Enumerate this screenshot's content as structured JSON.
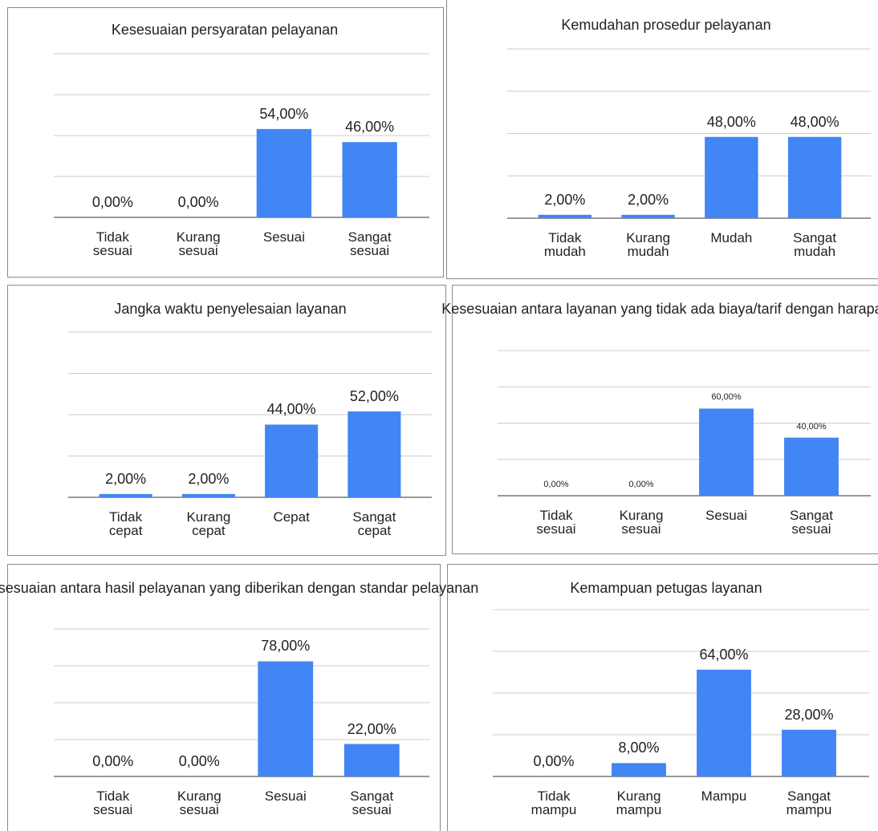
{
  "chart_data": [
    {
      "type": "bar",
      "title": "Kesesuaian persyaratan pelayanan",
      "categories": [
        "Tidak sesuai",
        "Kurang sesuai",
        "Sesuai",
        "Sangat sesuai"
      ],
      "values": [
        0,
        0,
        54,
        46
      ],
      "value_labels": [
        "0,00%",
        "0,00%",
        "54,00%",
        "46,00%"
      ],
      "color": "#4285f4",
      "ylim": [
        0,
        100
      ],
      "yticks": [
        0,
        25,
        50,
        75,
        100
      ],
      "grid": true
    },
    {
      "type": "bar",
      "title": "Kemudahan prosedur pelayanan",
      "categories": [
        "Tidak mudah",
        "Kurang mudah",
        "Mudah",
        "Sangat mudah"
      ],
      "values": [
        2,
        2,
        48,
        48
      ],
      "value_labels": [
        "2,00%",
        "2,00%",
        "48,00%",
        "48,00%"
      ],
      "color": "#4285f4",
      "ylim": [
        0,
        100
      ],
      "yticks": [
        0,
        25,
        50,
        75,
        100
      ],
      "grid": true
    },
    {
      "type": "bar",
      "title": "Jangka waktu penyelesaian layanan",
      "categories": [
        "Tidak cepat",
        "Kurang cepat",
        "Cepat",
        "Sangat cepat"
      ],
      "values": [
        2,
        2,
        44,
        52
      ],
      "value_labels": [
        "2,00%",
        "2,00%",
        "44,00%",
        "52,00%"
      ],
      "color": "#4285f4",
      "ylim": [
        0,
        100
      ],
      "yticks": [
        0,
        25,
        50,
        75,
        100
      ],
      "grid": true
    },
    {
      "type": "bar",
      "title": "Kesesuaian antara layanan yang tidak ada biaya/tarif dengan harapan",
      "categories": [
        "Tidak sesuai",
        "Kurang sesuai",
        "Sesuai",
        "Sangat sesuai"
      ],
      "values": [
        0,
        0,
        60,
        40
      ],
      "value_labels": [
        "0,00%",
        "0,00%",
        "60,00%",
        "40,00%"
      ],
      "color": "#4285f4",
      "ylim": [
        0,
        100
      ],
      "yticks": [
        0,
        25,
        50,
        75,
        100
      ],
      "grid": true
    },
    {
      "type": "bar",
      "title": "Kesesuaian antara hasil pelayanan yang diberikan dengan standar pelayanan",
      "categories": [
        "Tidak sesuai",
        "Kurang sesuai",
        "Sesuai",
        "Sangat sesuai"
      ],
      "values": [
        0,
        0,
        78,
        22
      ],
      "value_labels": [
        "0,00%",
        "0,00%",
        "78,00%",
        "22,00%"
      ],
      "color": "#4285f4",
      "ylim": [
        0,
        100
      ],
      "yticks": [
        0,
        25,
        50,
        75,
        100
      ],
      "grid": true
    },
    {
      "type": "bar",
      "title": "Kemampuan petugas layanan",
      "categories": [
        "Tidak mampu",
        "Kurang mampu",
        "Mampu",
        "Sangat mampu"
      ],
      "values": [
        0,
        8,
        64,
        28
      ],
      "value_labels": [
        "0,00%",
        "8,00%",
        "64,00%",
        "28,00%"
      ],
      "color": "#4285f4",
      "ylim": [
        0,
        100
      ],
      "yticks": [
        0,
        25,
        50,
        75,
        100
      ],
      "grid": true
    }
  ]
}
